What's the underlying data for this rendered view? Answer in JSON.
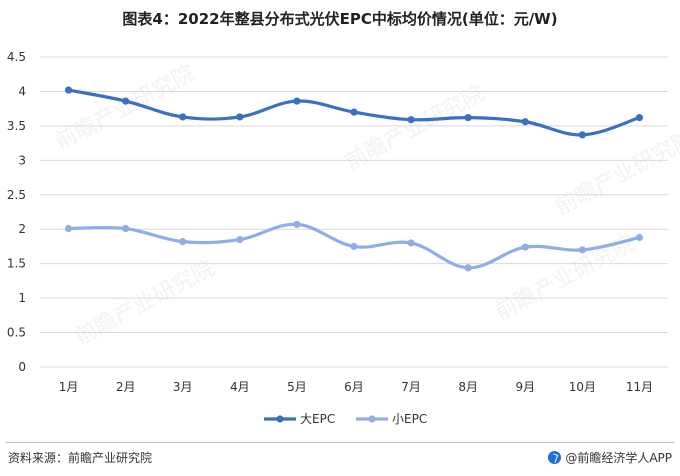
{
  "title": "图表4：2022年整县分布式光伏EPC中标均价情况(单位：元/W)",
  "source_text": "资料来源：前瞻产业研究院",
  "brand_text": "@前瞻经济学人APP",
  "watermark_text": "前瞻产业研究院",
  "chart_data": {
    "type": "line",
    "title": "图表4：2022年整县分布式光伏EPC中标均价情况(单位：元/W)",
    "categories": [
      "1月",
      "2月",
      "3月",
      "4月",
      "5月",
      "6月",
      "7月",
      "8月",
      "9月",
      "10月",
      "11月"
    ],
    "series": [
      {
        "name": "大EPC",
        "color": "#3a6fc4",
        "values": [
          4.02,
          3.86,
          3.63,
          3.63,
          3.86,
          3.7,
          3.59,
          3.62,
          3.56,
          3.37,
          3.62
        ]
      },
      {
        "name": "小EPC",
        "color": "#92acea",
        "values": [
          2.01,
          2.01,
          1.82,
          1.85,
          2.07,
          1.75,
          1.8,
          1.44,
          1.74,
          1.7,
          1.88
        ]
      }
    ],
    "yticks": [
      "0",
      "0.5",
      "1",
      "1.5",
      "2",
      "2.5",
      "3",
      "3.5",
      "4",
      "4.5"
    ],
    "ylim": [
      0,
      4.5
    ],
    "grid": true,
    "legend_position": "bottom"
  }
}
